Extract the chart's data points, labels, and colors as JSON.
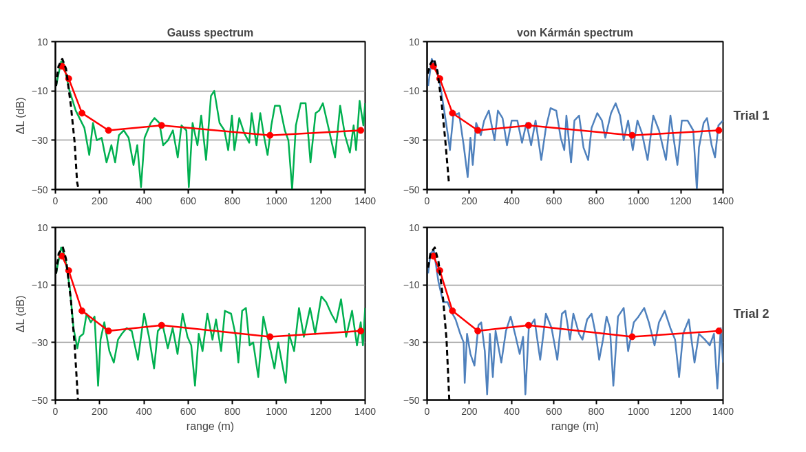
{
  "chart_data": [
    {
      "type": "line",
      "title": "Gauss spectrum",
      "ylabel": "ΔL (dB)",
      "xlim": [
        0,
        1400
      ],
      "ylim": [
        -50,
        10
      ],
      "xticks": [
        0,
        200,
        400,
        600,
        800,
        1000,
        1200,
        1400
      ],
      "yticks": [
        -50,
        -30,
        -10,
        10
      ],
      "grid": "y",
      "series": [
        {
          "color": "#00b050",
          "marker": "none",
          "line_style": "solid",
          "x": [
            3,
            26,
            37,
            64,
            92,
            131,
            153,
            170,
            187,
            209,
            231,
            253,
            270,
            287,
            309,
            331,
            353,
            370,
            387,
            403,
            431,
            448,
            470,
            487,
            509,
            531,
            553,
            570,
            592,
            603,
            620,
            642,
            659,
            681,
            703,
            718,
            742,
            764,
            781,
            798,
            809,
            831,
            853,
            876,
            887,
            909,
            926,
            942,
            959,
            976,
            992,
            1014,
            1037,
            1053,
            1070,
            1087,
            1109,
            1131,
            1153,
            1176,
            1192,
            1209,
            1237,
            1264,
            1287,
            1309,
            1331,
            1348,
            1359,
            1375,
            1392,
            1400
          ],
          "values": [
            -8,
            2,
            1,
            -10,
            -18,
            -25,
            -36,
            -23,
            -30,
            -29,
            -39,
            -32,
            -39,
            -28,
            -26,
            -29,
            -40,
            -32,
            -49,
            -29,
            -23,
            -21,
            -23,
            -32,
            -30,
            -26,
            -37,
            -24,
            -26,
            -49,
            -23,
            -32,
            -20,
            -38,
            -12,
            -10,
            -23,
            -26,
            -34,
            -20,
            -34,
            -21,
            -27,
            -31,
            -19,
            -32,
            -19,
            -28,
            -36,
            -24,
            -16,
            -16,
            -26,
            -30,
            -50,
            -24,
            -15,
            -15,
            -39,
            -19,
            -18,
            -15,
            -26,
            -37,
            -16,
            -28,
            -35,
            -24,
            -34,
            -14,
            -24,
            -15
          ]
        },
        {
          "color": "#ff0000",
          "marker": "circle",
          "line_style": "solid",
          "x": [
            30,
            60,
            120,
            240,
            480,
            970,
            1380
          ],
          "values": [
            0,
            -5,
            -19,
            -26,
            -24,
            -28,
            -26
          ]
        },
        {
          "color": "#000000",
          "marker": "none",
          "line_style": "dashed",
          "x": [
            3,
            14,
            31,
            48,
            70,
            87,
            98,
            105
          ],
          "values": [
            -8,
            0,
            3,
            -1,
            -16,
            -31,
            -47,
            -50
          ]
        }
      ]
    },
    {
      "type": "line",
      "title": "von Kármán spectrum",
      "annotations": [
        "Trial 1"
      ],
      "xlim": [
        0,
        1400
      ],
      "ylim": [
        -50,
        10
      ],
      "xticks": [
        0,
        200,
        400,
        600,
        800,
        1000,
        1200,
        1400
      ],
      "yticks": [
        -50,
        -30,
        -10,
        10
      ],
      "grid": "y",
      "series": [
        {
          "color": "#4f81bd",
          "marker": "none",
          "line_style": "solid",
          "x": [
            5,
            22,
            38,
            59,
            81,
            97,
            108,
            124,
            151,
            173,
            192,
            205,
            216,
            232,
            254,
            270,
            292,
            308,
            319,
            335,
            357,
            378,
            400,
            427,
            449,
            470,
            492,
            513,
            540,
            562,
            584,
            611,
            632,
            649,
            659,
            681,
            697,
            719,
            740,
            762,
            778,
            805,
            827,
            843,
            870,
            892,
            913,
            930,
            951,
            973,
            995,
            1016,
            1043,
            1070,
            1097,
            1130,
            1151,
            1184,
            1205,
            1232,
            1259,
            1276,
            1286,
            1308,
            1324,
            1346,
            1362,
            1378,
            1400
          ],
          "values": [
            -8,
            3,
            0,
            -6,
            -18,
            -27,
            -34,
            -20,
            -19,
            -32,
            -45,
            -29,
            -40,
            -23,
            -28,
            -22,
            -18,
            -25,
            -30,
            -18,
            -21,
            -32,
            -22,
            -22,
            -31,
            -23,
            -32,
            -22,
            -38,
            -25,
            -17,
            -18,
            -29,
            -34,
            -20,
            -39,
            -22,
            -20,
            -33,
            -38,
            -25,
            -19,
            -22,
            -29,
            -19,
            -15,
            -20,
            -30,
            -22,
            -34,
            -22,
            -27,
            -38,
            -20,
            -26,
            -38,
            -20,
            -40,
            -22,
            -22,
            -26,
            -50,
            -33,
            -23,
            -21,
            -32,
            -37,
            -24,
            -22
          ]
        },
        {
          "color": "#ff0000",
          "marker": "circle",
          "line_style": "solid",
          "x": [
            30,
            60,
            120,
            240,
            480,
            970,
            1380
          ],
          "values": [
            0,
            -5,
            -19,
            -26,
            -24,
            -28,
            -26
          ]
        },
        {
          "color": "#000000",
          "marker": "none",
          "line_style": "dashed",
          "x": [
            3,
            16,
            32,
            49,
            70,
            86,
            103
          ],
          "values": [
            -3,
            1,
            3,
            -2,
            -16,
            -30,
            -47
          ]
        }
      ]
    },
    {
      "type": "line",
      "ylabel": "ΔL (dB)",
      "xlabel": "range (m)",
      "xlim": [
        0,
        1400
      ],
      "ylim": [
        -50,
        10
      ],
      "xticks": [
        0,
        200,
        400,
        600,
        800,
        1000,
        1200,
        1400
      ],
      "yticks": [
        -50,
        -30,
        -10,
        10
      ],
      "grid": "y",
      "series": [
        {
          "color": "#00b050",
          "marker": "none",
          "line_style": "solid",
          "x": [
            3,
            26,
            43,
            65,
            82,
            99,
            110,
            126,
            141,
            160,
            177,
            193,
            204,
            221,
            244,
            264,
            283,
            300,
            322,
            345,
            373,
            401,
            423,
            446,
            463,
            485,
            508,
            530,
            552,
            575,
            597,
            614,
            631,
            648,
            665,
            687,
            710,
            726,
            749,
            766,
            794,
            816,
            827,
            844,
            861,
            878,
            894,
            917,
            940,
            962,
            990,
            1007,
            1041,
            1056,
            1079,
            1101,
            1123,
            1151,
            1174,
            1202,
            1224,
            1247,
            1269,
            1291,
            1314,
            1341,
            1363,
            1380,
            1390,
            1400
          ],
          "values": [
            -6,
            3,
            0,
            -11,
            -25,
            -32,
            -28,
            -27,
            -20,
            -23,
            -21,
            -45,
            -29,
            -23,
            -33,
            -37,
            -29,
            -27,
            -25,
            -26,
            -36,
            -20,
            -28,
            -39,
            -26,
            -24,
            -32,
            -25,
            -34,
            -20,
            -28,
            -31,
            -45,
            -27,
            -33,
            -20,
            -29,
            -22,
            -33,
            -19,
            -20,
            -28,
            -37,
            -19,
            -18,
            -31,
            -30,
            -42,
            -21,
            -29,
            -39,
            -30,
            -44,
            -27,
            -33,
            -18,
            -28,
            -18,
            -27,
            -14,
            -16,
            -20,
            -23,
            -15,
            -28,
            -19,
            -31,
            -23,
            -31,
            -18
          ]
        },
        {
          "color": "#ff0000",
          "marker": "circle",
          "line_style": "solid",
          "x": [
            30,
            60,
            120,
            240,
            480,
            970,
            1380
          ],
          "values": [
            0,
            -5,
            -19,
            -26,
            -24,
            -28,
            -26
          ]
        },
        {
          "color": "#000000",
          "marker": "none",
          "line_style": "dashed",
          "x": [
            3,
            15,
            34,
            48,
            71,
            87,
            102
          ],
          "values": [
            -6,
            1,
            3,
            -1,
            -16,
            -31,
            -50
          ]
        }
      ]
    },
    {
      "type": "line",
      "xlabel": "range (m)",
      "annotations": [
        "Trial 2"
      ],
      "xlim": [
        0,
        1400
      ],
      "ylim": [
        -50,
        10
      ],
      "xticks": [
        0,
        200,
        400,
        600,
        800,
        1000,
        1200,
        1400
      ],
      "yticks": [
        -50,
        -30,
        -10,
        10
      ],
      "grid": "y",
      "series": [
        {
          "color": "#4f81bd",
          "marker": "none",
          "line_style": "solid",
          "x": [
            5,
            16,
            32,
            54,
            76,
            97,
            113,
            135,
            157,
            173,
            178,
            189,
            205,
            224,
            243,
            256,
            273,
            284,
            297,
            311,
            324,
            351,
            373,
            395,
            416,
            438,
            454,
            465,
            481,
            508,
            535,
            562,
            589,
            616,
            638,
            654,
            676,
            692,
            719,
            735,
            757,
            778,
            800,
            814,
            832,
            849,
            865,
            881,
            903,
            930,
            951,
            978,
            1000,
            1027,
            1049,
            1076,
            1097,
            1124,
            1151,
            1173,
            1192,
            1211,
            1238,
            1265,
            1286,
            1314,
            1337,
            1357,
            1373,
            1389,
            1400
          ],
          "values": [
            -6,
            1,
            2,
            -9,
            -16,
            -16,
            -19,
            -22,
            -27,
            -30,
            -44,
            -27,
            -34,
            -38,
            -24,
            -23,
            -33,
            -48,
            -27,
            -42,
            -26,
            -37,
            -26,
            -21,
            -27,
            -34,
            -28,
            -48,
            -25,
            -22,
            -36,
            -20,
            -25,
            -36,
            -20,
            -19,
            -29,
            -20,
            -27,
            -29,
            -22,
            -20,
            -28,
            -36,
            -29,
            -21,
            -25,
            -45,
            -21,
            -18,
            -33,
            -23,
            -21,
            -18,
            -23,
            -31,
            -23,
            -19,
            -25,
            -29,
            -42,
            -27,
            -22,
            -37,
            -27,
            -29,
            -31,
            -27,
            -46,
            -25,
            -37
          ]
        },
        {
          "color": "#ff0000",
          "marker": "circle",
          "line_style": "solid",
          "x": [
            30,
            60,
            120,
            240,
            480,
            970,
            1380
          ],
          "values": [
            0,
            -5,
            -19,
            -26,
            -24,
            -28,
            -26
          ]
        },
        {
          "color": "#000000",
          "marker": "none",
          "line_style": "dashed",
          "x": [
            5,
            16,
            36,
            54,
            76,
            92,
            105
          ],
          "values": [
            -4,
            1,
            3,
            -2,
            -15,
            -29,
            -50
          ]
        }
      ]
    }
  ]
}
